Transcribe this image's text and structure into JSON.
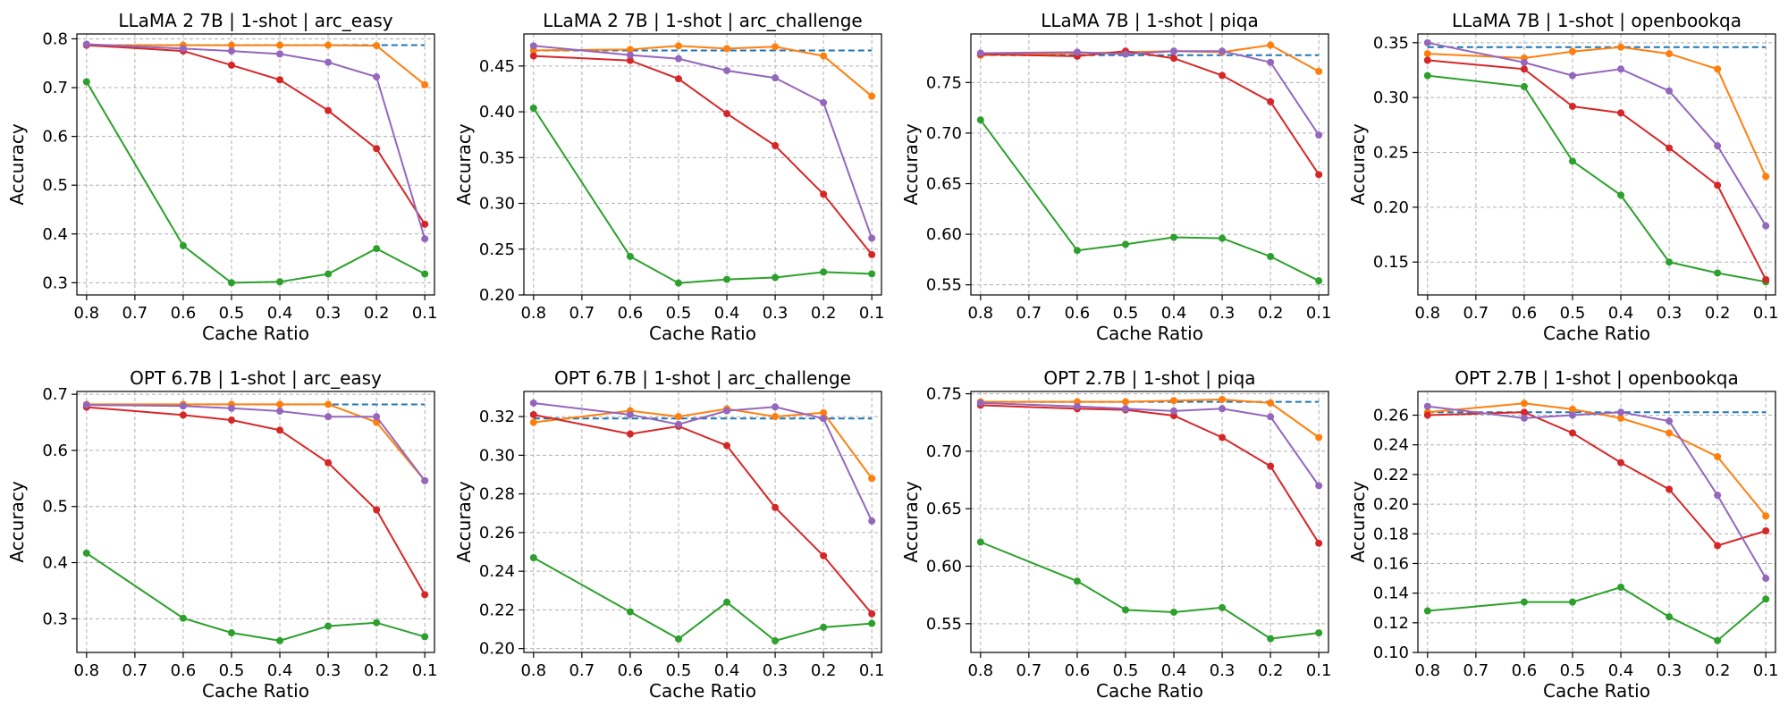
{
  "figure": {
    "xlabel": "Cache Ratio",
    "ylabel": "Accuracy",
    "x_ticks": [
      "0.8",
      "0.7",
      "0.6",
      "0.5",
      "0.4",
      "0.3",
      "0.2",
      "0.1"
    ],
    "x_values": [
      0.8,
      0.6,
      0.5,
      0.4,
      0.3,
      0.2,
      0.1
    ],
    "series_colors": {
      "baseline": "#1f77b4",
      "orange": "#ff7f0e",
      "green": "#2ca02c",
      "red": "#d62728",
      "purple": "#9467bd"
    }
  },
  "chart_data": [
    {
      "type": "line",
      "title": "LLaMA 2 7B | 1-shot | arc_easy",
      "xlabel": "Cache Ratio",
      "ylabel": "Accuracy",
      "xlim": [
        0.82,
        0.08
      ],
      "ylim": [
        0.275,
        0.81
      ],
      "y_ticks": [
        0.3,
        0.4,
        0.5,
        0.6,
        0.7,
        0.8
      ],
      "y_decimals": 1,
      "baseline": 0.787,
      "x": [
        0.8,
        0.6,
        0.5,
        0.4,
        0.3,
        0.2,
        0.1
      ],
      "series": [
        {
          "color": "#ff7f0e",
          "values": [
            0.787,
            0.787,
            0.787,
            0.787,
            0.787,
            0.786,
            0.706
          ]
        },
        {
          "color": "#2ca02c",
          "values": [
            0.712,
            0.376,
            0.3,
            0.302,
            0.318,
            0.37,
            0.318
          ]
        },
        {
          "color": "#d62728",
          "values": [
            0.787,
            0.775,
            0.746,
            0.716,
            0.653,
            0.575,
            0.42
          ]
        },
        {
          "color": "#9467bd",
          "values": [
            0.789,
            0.78,
            0.775,
            0.769,
            0.752,
            0.722,
            0.39
          ]
        }
      ]
    },
    {
      "type": "line",
      "title": "LLaMA 2 7B | 1-shot | arc_challenge",
      "xlabel": "Cache Ratio",
      "ylabel": "Accuracy",
      "xlim": [
        0.82,
        0.08
      ],
      "ylim": [
        0.2,
        0.485
      ],
      "y_ticks": [
        0.2,
        0.25,
        0.3,
        0.35,
        0.4,
        0.45
      ],
      "y_decimals": 2,
      "baseline": 0.467,
      "x": [
        0.8,
        0.6,
        0.5,
        0.4,
        0.3,
        0.2,
        0.1
      ],
      "series": [
        {
          "color": "#ff7f0e",
          "values": [
            0.467,
            0.468,
            0.472,
            0.469,
            0.471,
            0.461,
            0.417
          ]
        },
        {
          "color": "#2ca02c",
          "values": [
            0.404,
            0.242,
            0.213,
            0.217,
            0.219,
            0.225,
            0.223
          ]
        },
        {
          "color": "#d62728",
          "values": [
            0.461,
            0.456,
            0.436,
            0.398,
            0.363,
            0.31,
            0.244
          ]
        },
        {
          "color": "#9467bd",
          "values": [
            0.472,
            0.462,
            0.458,
            0.445,
            0.437,
            0.41,
            0.262
          ]
        }
      ]
    },
    {
      "type": "line",
      "title": "LLaMA 7B | 1-shot | piqa",
      "xlabel": "Cache Ratio",
      "ylabel": "Accuracy",
      "xlim": [
        0.82,
        0.08
      ],
      "ylim": [
        0.54,
        0.798
      ],
      "y_ticks": [
        0.55,
        0.6,
        0.65,
        0.7,
        0.75
      ],
      "y_decimals": 2,
      "baseline": 0.777,
      "x": [
        0.8,
        0.6,
        0.5,
        0.4,
        0.3,
        0.2,
        0.1
      ],
      "series": [
        {
          "color": "#ff7f0e",
          "values": [
            0.777,
            0.779,
            0.78,
            0.781,
            0.78,
            0.787,
            0.761
          ]
        },
        {
          "color": "#2ca02c",
          "values": [
            0.713,
            0.584,
            0.59,
            0.597,
            0.596,
            0.578,
            0.554
          ]
        },
        {
          "color": "#d62728",
          "values": [
            0.778,
            0.776,
            0.781,
            0.774,
            0.757,
            0.731,
            0.659
          ]
        },
        {
          "color": "#9467bd",
          "values": [
            0.779,
            0.78,
            0.778,
            0.781,
            0.781,
            0.77,
            0.698
          ]
        }
      ]
    },
    {
      "type": "line",
      "title": "LLaMA 7B | 1-shot | openbookqa",
      "xlabel": "Cache Ratio",
      "ylabel": "Accuracy",
      "xlim": [
        0.82,
        0.08
      ],
      "ylim": [
        0.12,
        0.358
      ],
      "y_ticks": [
        0.15,
        0.2,
        0.25,
        0.3,
        0.35
      ],
      "y_decimals": 2,
      "baseline": 0.346,
      "x": [
        0.8,
        0.6,
        0.5,
        0.4,
        0.3,
        0.2,
        0.1
      ],
      "series": [
        {
          "color": "#ff7f0e",
          "values": [
            0.34,
            0.336,
            0.342,
            0.346,
            0.34,
            0.326,
            0.228
          ]
        },
        {
          "color": "#2ca02c",
          "values": [
            0.32,
            0.31,
            0.242,
            0.211,
            0.15,
            0.14,
            0.132
          ]
        },
        {
          "color": "#d62728",
          "values": [
            0.334,
            0.326,
            0.292,
            0.286,
            0.254,
            0.22,
            0.134
          ]
        },
        {
          "color": "#9467bd",
          "values": [
            0.35,
            0.332,
            0.32,
            0.326,
            0.306,
            0.256,
            0.183
          ]
        }
      ]
    },
    {
      "type": "line",
      "title": "OPT 6.7B | 1-shot | arc_easy",
      "xlabel": "Cache Ratio",
      "ylabel": "Accuracy",
      "xlim": [
        0.82,
        0.08
      ],
      "ylim": [
        0.24,
        0.705
      ],
      "y_ticks": [
        0.3,
        0.4,
        0.5,
        0.6,
        0.7
      ],
      "y_decimals": 1,
      "baseline": 0.682,
      "x": [
        0.8,
        0.6,
        0.5,
        0.4,
        0.3,
        0.2,
        0.1
      ],
      "series": [
        {
          "color": "#ff7f0e",
          "values": [
            0.682,
            0.682,
            0.682,
            0.682,
            0.682,
            0.65,
            0.546
          ]
        },
        {
          "color": "#2ca02c",
          "values": [
            0.417,
            0.301,
            0.275,
            0.261,
            0.287,
            0.293,
            0.268
          ]
        },
        {
          "color": "#d62728",
          "values": [
            0.677,
            0.663,
            0.654,
            0.636,
            0.578,
            0.494,
            0.343
          ]
        },
        {
          "color": "#9467bd",
          "values": [
            0.681,
            0.679,
            0.675,
            0.67,
            0.66,
            0.66,
            0.546
          ]
        }
      ]
    },
    {
      "type": "line",
      "title": "OPT 6.7B | 1-shot | arc_challenge",
      "xlabel": "Cache Ratio",
      "ylabel": "Accuracy",
      "xlim": [
        0.82,
        0.08
      ],
      "ylim": [
        0.198,
        0.333
      ],
      "y_ticks": [
        0.2,
        0.22,
        0.24,
        0.26,
        0.28,
        0.3,
        0.32
      ],
      "y_decimals": 2,
      "baseline": 0.319,
      "x": [
        0.8,
        0.6,
        0.5,
        0.4,
        0.3,
        0.2,
        0.1
      ],
      "series": [
        {
          "color": "#ff7f0e",
          "values": [
            0.317,
            0.323,
            0.32,
            0.324,
            0.32,
            0.322,
            0.288
          ]
        },
        {
          "color": "#2ca02c",
          "values": [
            0.247,
            0.219,
            0.205,
            0.224,
            0.204,
            0.211,
            0.213
          ]
        },
        {
          "color": "#d62728",
          "values": [
            0.321,
            0.311,
            0.315,
            0.305,
            0.273,
            0.248,
            0.218
          ]
        },
        {
          "color": "#9467bd",
          "values": [
            0.327,
            0.321,
            0.316,
            0.323,
            0.325,
            0.319,
            0.266
          ]
        }
      ]
    },
    {
      "type": "line",
      "title": "OPT 2.7B | 1-shot | piqa",
      "xlabel": "Cache Ratio",
      "ylabel": "Accuracy",
      "xlim": [
        0.82,
        0.08
      ],
      "ylim": [
        0.525,
        0.752
      ],
      "y_ticks": [
        0.55,
        0.6,
        0.65,
        0.7,
        0.75
      ],
      "y_decimals": 2,
      "baseline": 0.743,
      "x": [
        0.8,
        0.6,
        0.5,
        0.4,
        0.3,
        0.2,
        0.1
      ],
      "series": [
        {
          "color": "#ff7f0e",
          "values": [
            0.743,
            0.743,
            0.743,
            0.744,
            0.745,
            0.742,
            0.712
          ]
        },
        {
          "color": "#2ca02c",
          "values": [
            0.621,
            0.587,
            0.562,
            0.56,
            0.564,
            0.537,
            0.542
          ]
        },
        {
          "color": "#d62728",
          "values": [
            0.74,
            0.737,
            0.736,
            0.731,
            0.712,
            0.687,
            0.62
          ]
        },
        {
          "color": "#9467bd",
          "values": [
            0.742,
            0.739,
            0.737,
            0.735,
            0.737,
            0.73,
            0.67
          ]
        }
      ]
    },
    {
      "type": "line",
      "title": "OPT 2.7B | 1-shot | openbookqa",
      "xlabel": "Cache Ratio",
      "ylabel": "Accuracy",
      "xlim": [
        0.82,
        0.08
      ],
      "ylim": [
        0.1,
        0.276
      ],
      "y_ticks": [
        0.1,
        0.12,
        0.14,
        0.16,
        0.18,
        0.2,
        0.22,
        0.24,
        0.26
      ],
      "y_decimals": 2,
      "baseline": 0.262,
      "x": [
        0.8,
        0.6,
        0.5,
        0.4,
        0.3,
        0.2,
        0.1
      ],
      "series": [
        {
          "color": "#ff7f0e",
          "values": [
            0.262,
            0.268,
            0.264,
            0.258,
            0.248,
            0.232,
            0.192
          ]
        },
        {
          "color": "#2ca02c",
          "values": [
            0.128,
            0.134,
            0.134,
            0.144,
            0.124,
            0.108,
            0.136
          ]
        },
        {
          "color": "#d62728",
          "values": [
            0.26,
            0.262,
            0.248,
            0.228,
            0.21,
            0.172,
            0.182
          ]
        },
        {
          "color": "#9467bd",
          "values": [
            0.266,
            0.258,
            0.26,
            0.262,
            0.256,
            0.206,
            0.15
          ]
        }
      ]
    }
  ]
}
